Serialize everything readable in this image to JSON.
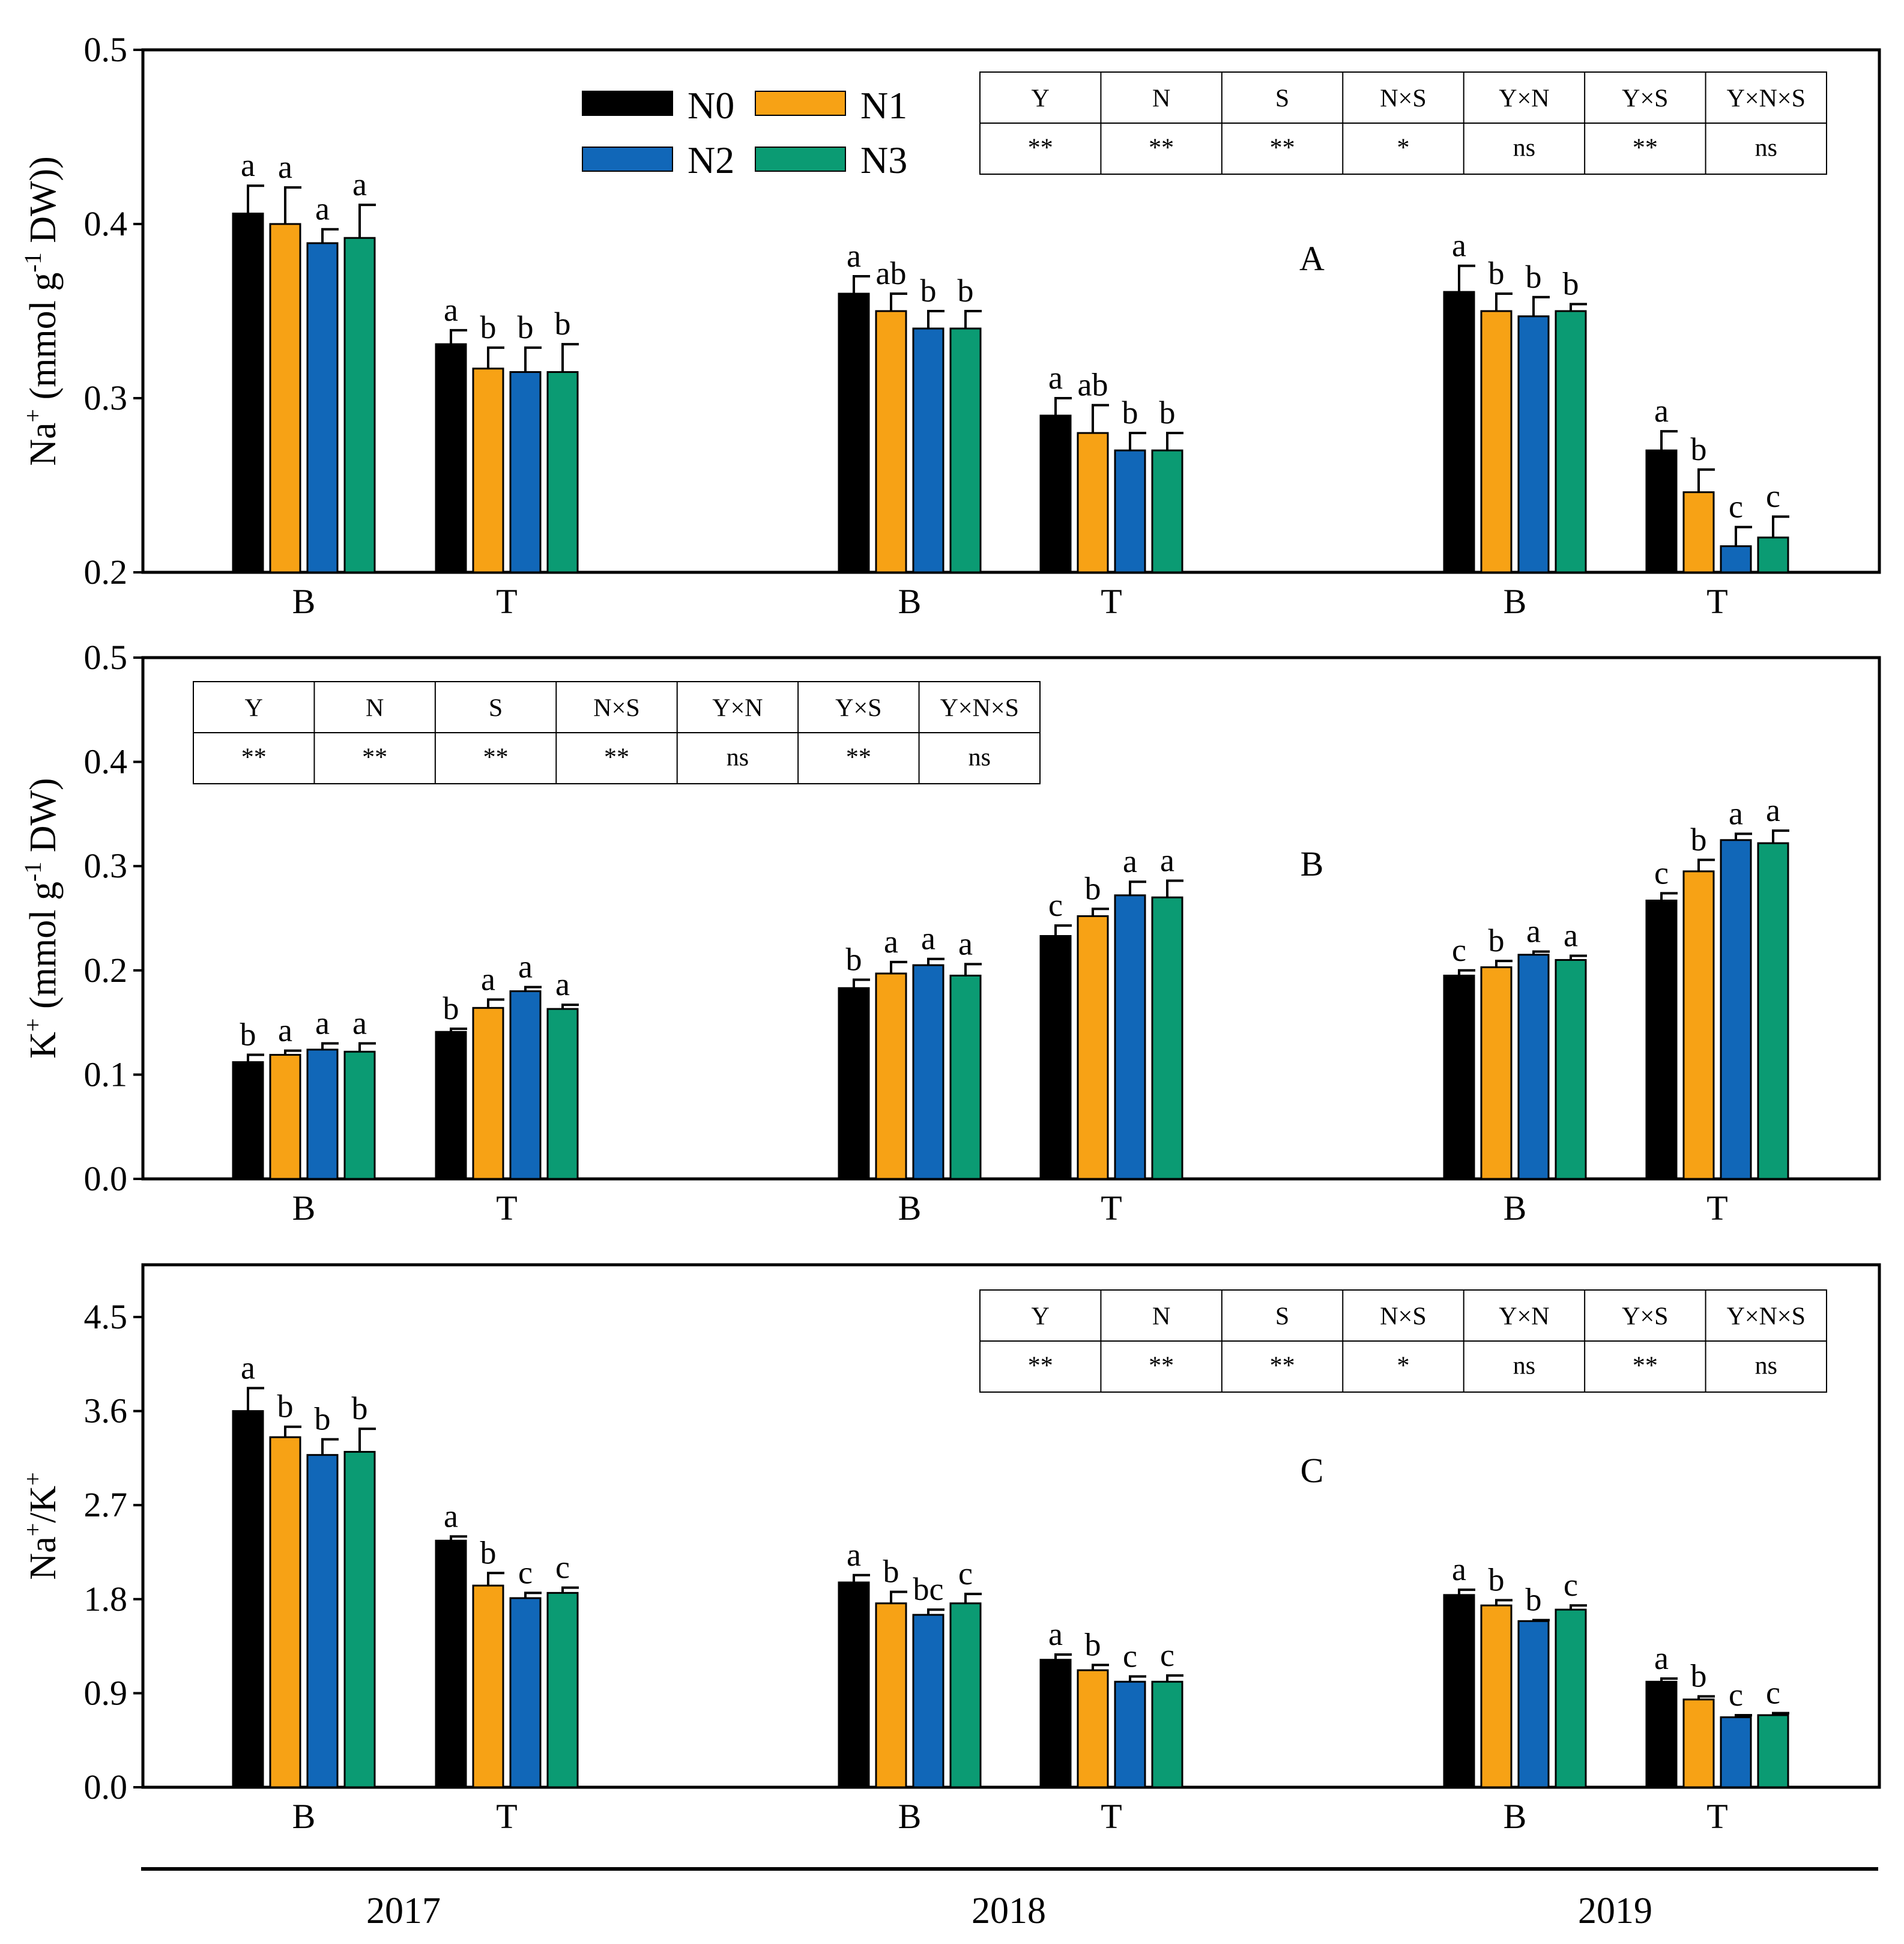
{
  "colors": {
    "N0": "#000000",
    "N1": "#F7A215",
    "N2": "#1167B8",
    "N3": "#0B9B73"
  },
  "legend": {
    "series": [
      "N0",
      "N1",
      "N2",
      "N3"
    ]
  },
  "years": [
    "2017",
    "2018",
    "2019"
  ],
  "positions": [
    "B",
    "T"
  ],
  "chart_data": [
    {
      "id": "A",
      "type": "bar",
      "panel_letter": "A",
      "ylabel": {
        "base": "Na",
        "sup": "+",
        "mid": " (mmol g",
        "sup2": "-1",
        "tail": " DW))"
      },
      "ylim": [
        0.2,
        0.5
      ],
      "yticks": [
        "0.2",
        "0.3",
        "0.4",
        "0.5"
      ],
      "ytick_values": [
        0.2,
        0.3,
        0.4,
        0.5
      ],
      "categories": [
        "B",
        "T",
        "B",
        "T",
        "B",
        "T"
      ],
      "series": [
        {
          "name": "N0",
          "values": [
            0.406,
            0.331,
            0.36,
            0.29,
            0.361,
            0.27
          ],
          "errors": [
            0.016,
            0.008,
            0.01,
            0.01,
            0.015,
            0.011
          ]
        },
        {
          "name": "N1",
          "values": [
            0.4,
            0.317,
            0.35,
            0.28,
            0.35,
            0.246
          ],
          "errors": [
            0.021,
            0.012,
            0.01,
            0.016,
            0.01,
            0.013
          ]
        },
        {
          "name": "N2",
          "values": [
            0.389,
            0.315,
            0.34,
            0.27,
            0.347,
            0.215
          ],
          "errors": [
            0.008,
            0.014,
            0.01,
            0.01,
            0.011,
            0.011
          ]
        },
        {
          "name": "N3",
          "values": [
            0.392,
            0.315,
            0.34,
            0.27,
            0.35,
            0.22
          ],
          "errors": [
            0.019,
            0.016,
            0.01,
            0.01,
            0.004,
            0.012
          ]
        }
      ],
      "letters": [
        [
          "a",
          "a",
          "a",
          "a"
        ],
        [
          "a",
          "b",
          "b",
          "b"
        ],
        [
          "a",
          "ab",
          "b",
          "b"
        ],
        [
          "a",
          "ab",
          "b",
          "b"
        ],
        [
          "a",
          "b",
          "b",
          "b"
        ],
        [
          "a",
          "b",
          "c",
          "c"
        ]
      ],
      "anova": {
        "headers": [
          "Y",
          "N",
          "S",
          "N×S",
          "Y×N",
          "Y×S",
          "Y×N×S"
        ],
        "values": [
          "**",
          "**",
          "**",
          "*",
          "ns",
          "**",
          "ns"
        ]
      }
    },
    {
      "id": "B",
      "type": "bar",
      "panel_letter": "B",
      "ylabel": {
        "base": "K",
        "sup": "+",
        "mid": " (mmol g",
        "sup2": "-1",
        "tail": " DW)"
      },
      "ylim": [
        0.0,
        0.5
      ],
      "yticks": [
        "0.0",
        "0.1",
        "0.2",
        "0.3",
        "0.4",
        "0.5"
      ],
      "ytick_values": [
        0.0,
        0.1,
        0.2,
        0.3,
        0.4,
        0.5
      ],
      "categories": [
        "B",
        "T",
        "B",
        "T",
        "B",
        "T"
      ],
      "series": [
        {
          "name": "N0",
          "values": [
            0.112,
            0.141,
            0.183,
            0.233,
            0.195,
            0.267
          ],
          "errors": [
            0.007,
            0.003,
            0.008,
            0.01,
            0.005,
            0.007
          ]
        },
        {
          "name": "N1",
          "values": [
            0.119,
            0.164,
            0.197,
            0.252,
            0.203,
            0.295
          ],
          "errors": [
            0.004,
            0.008,
            0.011,
            0.007,
            0.006,
            0.011
          ]
        },
        {
          "name": "N2",
          "values": [
            0.124,
            0.18,
            0.205,
            0.272,
            0.215,
            0.325
          ],
          "errors": [
            0.006,
            0.004,
            0.006,
            0.013,
            0.003,
            0.006
          ]
        },
        {
          "name": "N3",
          "values": [
            0.122,
            0.163,
            0.195,
            0.27,
            0.21,
            0.322
          ],
          "errors": [
            0.008,
            0.004,
            0.011,
            0.016,
            0.004,
            0.012
          ]
        }
      ],
      "letters": [
        [
          "b",
          "a",
          "a",
          "a"
        ],
        [
          "b",
          "a",
          "a",
          "a"
        ],
        [
          "b",
          "a",
          "a",
          "a"
        ],
        [
          "c",
          "b",
          "a",
          "a"
        ],
        [
          "c",
          "b",
          "a",
          "a"
        ],
        [
          "c",
          "b",
          "a",
          "a"
        ]
      ],
      "anova": {
        "headers": [
          "Y",
          "N",
          "S",
          "N×S",
          "Y×N",
          "Y×S",
          "Y×N×S"
        ],
        "values": [
          "**",
          "**",
          "**",
          "**",
          "ns",
          "**",
          "ns"
        ]
      }
    },
    {
      "id": "C",
      "type": "bar",
      "panel_letter": "C",
      "ylabel": {
        "base": "Na",
        "sup": "+",
        "mid": "/K",
        "sup2": "+",
        "tail": ""
      },
      "ylim": [
        0.0,
        5.0
      ],
      "yticks": [
        "0.0",
        "0.9",
        "1.8",
        "2.7",
        "3.6",
        "4.5"
      ],
      "ytick_values": [
        0.0,
        0.9,
        1.8,
        2.7,
        3.6,
        4.5
      ],
      "categories": [
        "B",
        "T",
        "B",
        "T",
        "B",
        "T"
      ],
      "series": [
        {
          "name": "N0",
          "values": [
            3.6,
            2.36,
            1.96,
            1.22,
            1.84,
            1.01
          ],
          "errors": [
            0.22,
            0.04,
            0.07,
            0.05,
            0.05,
            0.03
          ]
        },
        {
          "name": "N1",
          "values": [
            3.35,
            1.93,
            1.76,
            1.12,
            1.74,
            0.84
          ],
          "errors": [
            0.1,
            0.12,
            0.11,
            0.05,
            0.05,
            0.03
          ]
        },
        {
          "name": "N2",
          "values": [
            3.18,
            1.81,
            1.65,
            1.01,
            1.59,
            0.67
          ],
          "errors": [
            0.15,
            0.05,
            0.05,
            0.05,
            0.01,
            0.02
          ]
        },
        {
          "name": "N3",
          "values": [
            3.21,
            1.86,
            1.76,
            1.01,
            1.7,
            0.69
          ],
          "errors": [
            0.22,
            0.05,
            0.09,
            0.06,
            0.04,
            0.02
          ]
        }
      ],
      "letters": [
        [
          "a",
          "b",
          "b",
          "b"
        ],
        [
          "a",
          "b",
          "c",
          "c"
        ],
        [
          "a",
          "b",
          "bc",
          "c"
        ],
        [
          "a",
          "b",
          "c",
          "c"
        ],
        [
          "a",
          "b",
          "b",
          "c"
        ],
        [
          "a",
          "b",
          "c",
          "c"
        ]
      ],
      "anova": {
        "headers": [
          "Y",
          "N",
          "S",
          "N×S",
          "Y×N",
          "Y×S",
          "Y×N×S"
        ],
        "values": [
          "**",
          "**",
          "**",
          "*",
          "ns",
          "**",
          "ns"
        ]
      }
    }
  ]
}
